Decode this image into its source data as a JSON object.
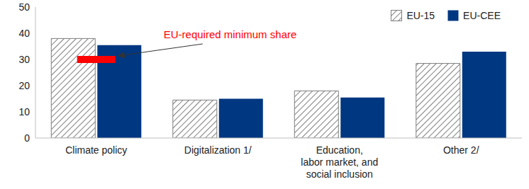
{
  "chart_data": {
    "type": "bar",
    "categories": [
      "Climate policy",
      "Digitalization 1/",
      "Education,\nlabor market, and\nsocial inclusion",
      "Other 2/"
    ],
    "series": [
      {
        "name": "EU-15",
        "color": "#7f7f7f",
        "values": [
          38,
          14.5,
          18,
          28.5
        ]
      },
      {
        "name": "EU-CEE",
        "color": "#003781",
        "values": [
          35.5,
          15,
          15.5,
          33
        ]
      }
    ],
    "ylim": [
      0,
      50
    ],
    "yticks": [
      0,
      10,
      20,
      30,
      40,
      50
    ],
    "grid": false,
    "legend": "upper right",
    "annotations": [
      {
        "text": "EU-required minimum share",
        "category": "Climate policy",
        "value": 30,
        "color": "#ff0000"
      }
    ]
  }
}
